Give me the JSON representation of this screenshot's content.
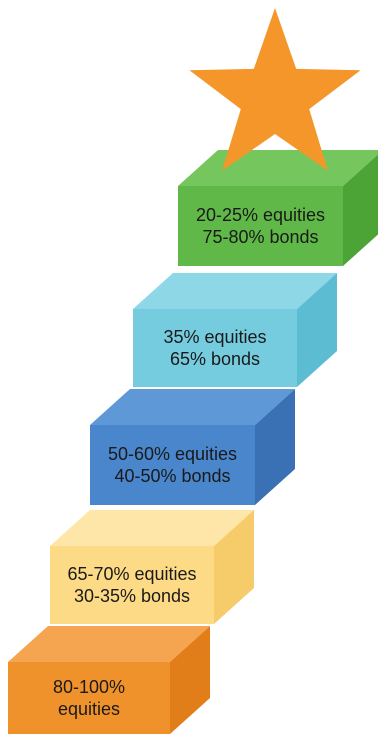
{
  "diagram": {
    "star": {
      "icon": "star-icon",
      "color": "#F4962A"
    },
    "steps": [
      {
        "id": "step-1",
        "lines": [
          "80-100%",
          "equities"
        ],
        "colors": {
          "front": "#F0922B",
          "top": "#F5A550",
          "side": "#E27E1A"
        }
      },
      {
        "id": "step-2",
        "lines": [
          "65-70% equities",
          "30-35% bonds"
        ],
        "colors": {
          "front": "#FDDA86",
          "top": "#FEE6A8",
          "side": "#F6CB69"
        }
      },
      {
        "id": "step-3",
        "lines": [
          "50-60% equities",
          "40-50% bonds"
        ],
        "colors": {
          "front": "#4A86CC",
          "top": "#5E98D6",
          "side": "#3A70B4"
        }
      },
      {
        "id": "step-4",
        "lines": [
          "35% equities",
          "65% bonds"
        ],
        "colors": {
          "front": "#76CCDF",
          "top": "#8ED7E7",
          "side": "#5CBCD2"
        }
      },
      {
        "id": "step-5",
        "lines": [
          "20-25% equities",
          "75-80% bonds"
        ],
        "colors": {
          "front": "#5FB847",
          "top": "#76C65E",
          "side": "#4CA336"
        }
      }
    ]
  }
}
